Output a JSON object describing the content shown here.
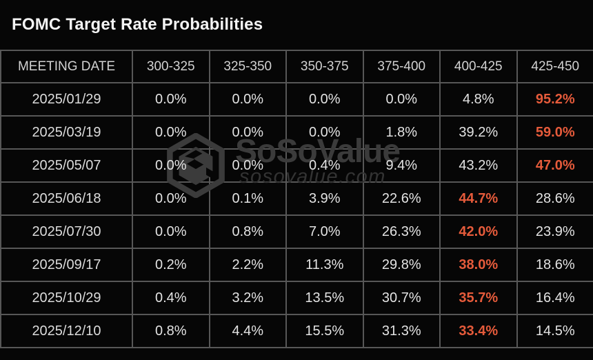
{
  "title": "FOMC Target Rate Probabilities",
  "chart_data": {
    "type": "table",
    "title": "FOMC Target Rate Probabilities",
    "columns": [
      "MEETING DATE",
      "300-325",
      "325-350",
      "350-375",
      "375-400",
      "400-425",
      "425-450"
    ],
    "rows": [
      {
        "date": "2025/01/29",
        "values": [
          "0.0%",
          "0.0%",
          "0.0%",
          "0.0%",
          "4.8%",
          "95.2%"
        ],
        "highlight_col": 5
      },
      {
        "date": "2025/03/19",
        "values": [
          "0.0%",
          "0.0%",
          "0.0%",
          "1.8%",
          "39.2%",
          "59.0%"
        ],
        "highlight_col": 5
      },
      {
        "date": "2025/05/07",
        "values": [
          "0.0%",
          "0.0%",
          "0.4%",
          "9.4%",
          "43.2%",
          "47.0%"
        ],
        "highlight_col": 5
      },
      {
        "date": "2025/06/18",
        "values": [
          "0.0%",
          "0.1%",
          "3.9%",
          "22.6%",
          "44.7%",
          "28.6%"
        ],
        "highlight_col": 4
      },
      {
        "date": "2025/07/30",
        "values": [
          "0.0%",
          "0.8%",
          "7.0%",
          "26.3%",
          "42.0%",
          "23.9%"
        ],
        "highlight_col": 4
      },
      {
        "date": "2025/09/17",
        "values": [
          "0.2%",
          "2.2%",
          "11.3%",
          "29.8%",
          "38.0%",
          "18.6%"
        ],
        "highlight_col": 4
      },
      {
        "date": "2025/10/29",
        "values": [
          "0.4%",
          "3.2%",
          "13.5%",
          "30.7%",
          "35.7%",
          "16.4%"
        ],
        "highlight_col": 4
      },
      {
        "date": "2025/12/10",
        "values": [
          "0.8%",
          "4.4%",
          "15.5%",
          "31.3%",
          "33.4%",
          "14.5%"
        ],
        "highlight_col": 4
      }
    ],
    "highlight_color": "#e65b3b",
    "highlight_note": "highest probability in each row rendered bold orange",
    "legend_position": "none",
    "grid": "on"
  },
  "watermark": {
    "brand": "SoSoValue",
    "domain_text": "sosovalue.com",
    "logo_icon": "sosovalue-cube-logo"
  },
  "colors": {
    "background": "#060606",
    "border": "#575757",
    "title_text": "#f4f4f4",
    "header_text": "#d2d2d2",
    "cell_text": "#e3e3e3",
    "highlight": "#e65b3b",
    "watermark_text": "#3b3b3b"
  }
}
